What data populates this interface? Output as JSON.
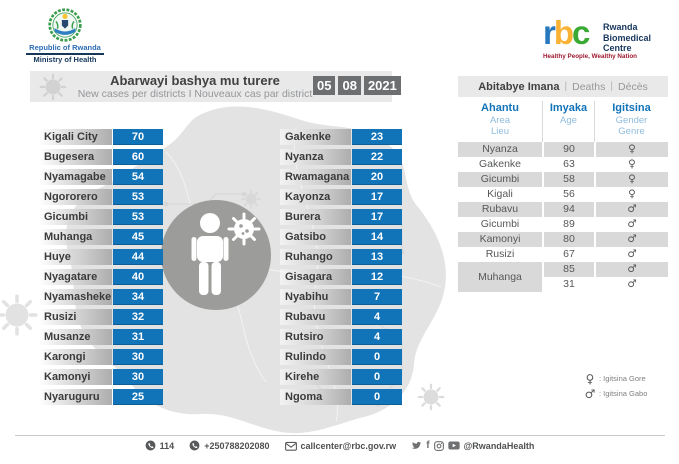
{
  "logos": {
    "gov": {
      "name": "Republic of Rwanda",
      "ministry": "Ministry of Health"
    },
    "rbc": {
      "letters": [
        "r",
        "b",
        "c"
      ],
      "letter_colors": [
        "#2878be",
        "#f9b233",
        "#3aaa35"
      ],
      "name_lines": [
        "Rwanda",
        "Biomedical",
        "Centre"
      ],
      "tagline": "Healthy People, Wealthy Nation"
    }
  },
  "header": {
    "title": "Abarwayi bashya mu turere",
    "subtitle": "New cases per districts  I  Nouveaux cas par district",
    "date": {
      "day": "05",
      "month": "08",
      "year": "2021"
    }
  },
  "districts": {
    "left": [
      {
        "name": "Kigali City",
        "value": "70"
      },
      {
        "name": "Bugesera",
        "value": "60"
      },
      {
        "name": "Nyamagabe",
        "value": "54"
      },
      {
        "name": "Ngororero",
        "value": "53"
      },
      {
        "name": "Gicumbi",
        "value": "53"
      },
      {
        "name": "Muhanga",
        "value": "45"
      },
      {
        "name": "Huye",
        "value": "44"
      },
      {
        "name": "Nyagatare",
        "value": "40"
      },
      {
        "name": "Nyamasheke",
        "value": "34"
      },
      {
        "name": "Rusizi",
        "value": "32"
      },
      {
        "name": "Musanze",
        "value": "31"
      },
      {
        "name": "Karongi",
        "value": "30"
      },
      {
        "name": "Kamonyi",
        "value": "30"
      },
      {
        "name": "Nyaruguru",
        "value": "25"
      }
    ],
    "right": [
      {
        "name": "Gakenke",
        "value": "23"
      },
      {
        "name": "Nyanza",
        "value": "22"
      },
      {
        "name": "Rwamagana",
        "value": "20"
      },
      {
        "name": "Kayonza",
        "value": "17"
      },
      {
        "name": "Burera",
        "value": "17"
      },
      {
        "name": "Gatsibo",
        "value": "14"
      },
      {
        "name": "Ruhango",
        "value": "13"
      },
      {
        "name": "Gisagara",
        "value": "12"
      },
      {
        "name": "Nyabihu",
        "value": "7"
      },
      {
        "name": "Rubavu",
        "value": "4"
      },
      {
        "name": "Rutsiro",
        "value": "4"
      },
      {
        "name": "Rulindo",
        "value": "0"
      },
      {
        "name": "Kirehe",
        "value": "0"
      },
      {
        "name": "Ngoma",
        "value": "0"
      }
    ]
  },
  "deaths": {
    "title_rw": "Abitabye Imana",
    "title_en": "Deaths",
    "title_fr": "Décès",
    "separator": "|",
    "columns": {
      "area_rw": "Ahantu",
      "area_en": "Area",
      "area_fr": "Lieu",
      "age_rw": "Imyaka",
      "age_en": "Age",
      "gender_rw": "Igitsina",
      "gender_en": "Gender",
      "gender_fr": "Genre"
    },
    "gender_symbols": {
      "female": "♀",
      "male": "♂"
    },
    "rows": [
      {
        "area": "Nyanza",
        "age": "90",
        "gender": "female"
      },
      {
        "area": "Gakenke",
        "age": "63",
        "gender": "female"
      },
      {
        "area": "Gicumbi",
        "age": "58",
        "gender": "female"
      },
      {
        "area": "Kigali",
        "age": "56",
        "gender": "female"
      },
      {
        "area": "Rubavu",
        "age": "94",
        "gender": "male"
      },
      {
        "area": "Gicumbi",
        "age": "89",
        "gender": "male"
      },
      {
        "area": "Kamonyi",
        "age": "80",
        "gender": "male"
      },
      {
        "area": "Rusizi",
        "age": "67",
        "gender": "male"
      },
      {
        "area": "Muhanga",
        "age": "85",
        "gender": "male",
        "rowspan": 2
      },
      {
        "area": null,
        "age": "31",
        "gender": "male"
      }
    ]
  },
  "legend": {
    "female_symbol": "♀",
    "female_label": ": Igitsina Gore",
    "male_symbol": "♂",
    "male_label": ": Igitsina Gabo"
  },
  "footer": {
    "phone_short": "114",
    "phone_long": "+250788202080",
    "email": "callcenter@rbc.gov.rw",
    "social_handle": "@RwandaHealth"
  },
  "colors": {
    "accent_blue": "#1173b8",
    "light_blue": "#8fbcdd",
    "band_gray": "#e9e9e9",
    "row_gray": "#d9d9d9",
    "date_box_gray": "#6d6e70",
    "circle_gray": "#9c9c9a"
  }
}
